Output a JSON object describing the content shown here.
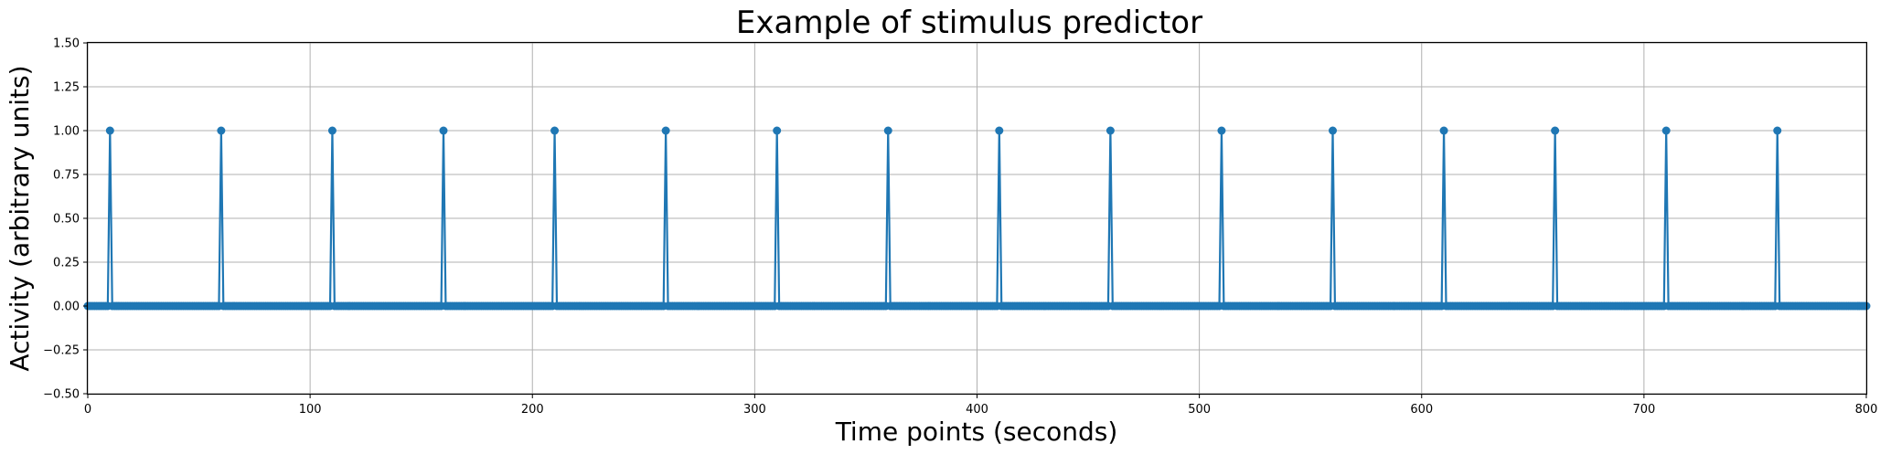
{
  "chart_data": {
    "type": "line",
    "title": "Example of stimulus predictor",
    "xlabel": "Time points (seconds)",
    "ylabel": "Activity (arbitrary units)",
    "xlim": [
      0,
      800
    ],
    "ylim": [
      -0.5,
      1.5
    ],
    "xticks": [
      0,
      100,
      200,
      300,
      400,
      500,
      600,
      700,
      800
    ],
    "yticks": [
      -0.5,
      -0.25,
      0.0,
      0.25,
      0.5,
      0.75,
      1.0,
      1.25,
      1.5
    ],
    "xtick_labels": [
      "0",
      "100",
      "200",
      "300",
      "400",
      "500",
      "600",
      "700",
      "800"
    ],
    "ytick_labels": [
      "−0.50",
      "−0.25",
      "0.00",
      "0.25",
      "0.50",
      "0.75",
      "1.00",
      "1.25",
      "1.50"
    ],
    "grid": true,
    "marker": "circle",
    "series": [
      {
        "color": "#1f77b4",
        "x_start": 0,
        "x_end": 800,
        "x_step": 1,
        "baseline": 0,
        "spike_value": 1,
        "spike_times": [
          10,
          60,
          110,
          160,
          210,
          260,
          310,
          360,
          410,
          460,
          510,
          560,
          610,
          660,
          710,
          760
        ]
      }
    ]
  }
}
